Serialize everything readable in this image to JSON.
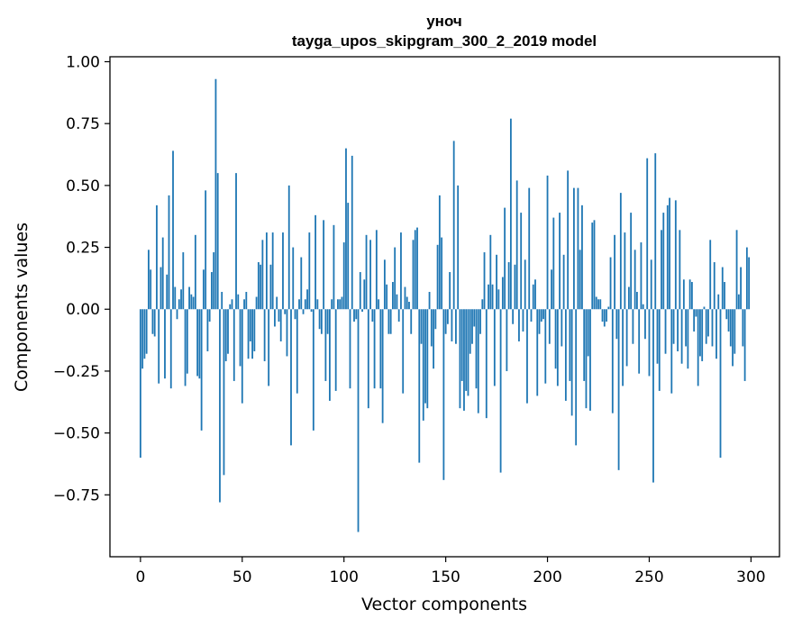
{
  "chart_data": {
    "type": "bar",
    "title_line1": "уноч",
    "title_line2": "tayga_upos_skipgram_300_2_2019 model",
    "xlabel": "Vector components",
    "ylabel": "Components values",
    "xlim": [
      -15,
      314
    ],
    "ylim": [
      -1.0,
      1.02
    ],
    "xticks": [
      0,
      50,
      100,
      150,
      200,
      250,
      300
    ],
    "xtick_labels": [
      "0",
      "50",
      "100",
      "150",
      "200",
      "250",
      "300"
    ],
    "yticks": [
      1.0,
      0.75,
      0.5,
      0.25,
      0.0,
      -0.25,
      -0.5,
      -0.75
    ],
    "ytick_labels": [
      "1.00",
      "0.75",
      "0.50",
      "0.25",
      "0.00",
      "−0.25",
      "−0.50",
      "−0.75"
    ],
    "bar_color": "#1f77b4",
    "grid": false,
    "values": [
      -0.6,
      -0.24,
      -0.2,
      -0.18,
      0.24,
      0.16,
      -0.1,
      -0.11,
      0.42,
      -0.3,
      0.17,
      0.29,
      -0.28,
      0.14,
      0.46,
      -0.32,
      0.64,
      0.09,
      -0.04,
      0.04,
      0.08,
      0.23,
      -0.31,
      -0.26,
      0.09,
      0.06,
      0.05,
      0.3,
      -0.27,
      -0.28,
      -0.49,
      0.16,
      0.48,
      -0.17,
      -0.05,
      0.15,
      0.23,
      0.93,
      0.55,
      -0.78,
      0.07,
      -0.67,
      -0.21,
      -0.18,
      0.02,
      0.04,
      -0.29,
      0.55,
      0.06,
      -0.23,
      -0.38,
      0.04,
      0.07,
      -0.2,
      -0.13,
      -0.2,
      -0.17,
      0.05,
      0.19,
      0.18,
      0.28,
      -0.21,
      0.31,
      -0.31,
      0.18,
      0.31,
      -0.07,
      0.05,
      -0.05,
      -0.13,
      0.31,
      -0.02,
      -0.19,
      0.5,
      -0.55,
      0.25,
      -0.04,
      -0.34,
      0.04,
      0.21,
      -0.02,
      0.04,
      0.08,
      0.31,
      -0.01,
      -0.49,
      0.38,
      0.04,
      -0.08,
      -0.1,
      0.36,
      -0.29,
      -0.1,
      -0.37,
      0.04,
      0.34,
      -0.33,
      0.04,
      0.04,
      0.05,
      0.27,
      0.65,
      0.43,
      -0.32,
      0.62,
      -0.05,
      -0.04,
      -0.9,
      0.15,
      -0.01,
      0.12,
      0.3,
      -0.4,
      0.28,
      -0.05,
      -0.32,
      0.32,
      0.04,
      -0.32,
      -0.46,
      0.2,
      0.1,
      -0.1,
      -0.1,
      0.11,
      0.25,
      0.06,
      -0.05,
      0.31,
      -0.34,
      0.09,
      0.05,
      0.03,
      -0.1,
      0.28,
      0.32,
      0.33,
      -0.62,
      -0.14,
      -0.45,
      -0.38,
      -0.4,
      0.07,
      -0.15,
      -0.24,
      -0.08,
      0.26,
      0.46,
      0.29,
      -0.69,
      -0.1,
      -0.06,
      0.15,
      -0.13,
      0.68,
      -0.14,
      0.5,
      -0.4,
      -0.29,
      -0.41,
      -0.33,
      -0.35,
      -0.18,
      -0.14,
      -0.07,
      -0.32,
      -0.42,
      -0.1,
      0.04,
      0.23,
      -0.44,
      0.1,
      0.3,
      0.1,
      -0.31,
      0.22,
      0.08,
      -0.66,
      0.13,
      0.41,
      -0.25,
      0.19,
      0.77,
      -0.06,
      0.18,
      0.52,
      -0.13,
      0.39,
      -0.09,
      0.2,
      -0.38,
      0.49,
      -0.05,
      0.1,
      0.12,
      -0.35,
      -0.1,
      -0.05,
      -0.04,
      -0.3,
      0.54,
      -0.14,
      0.16,
      0.37,
      -0.24,
      -0.31,
      0.39,
      -0.15,
      0.22,
      -0.37,
      0.56,
      -0.29,
      -0.43,
      0.49,
      -0.55,
      0.49,
      0.24,
      0.42,
      -0.29,
      -0.4,
      -0.19,
      -0.41,
      0.35,
      0.36,
      0.05,
      0.04,
      0.04,
      -0.05,
      -0.07,
      -0.05,
      0.01,
      0.21,
      -0.42,
      0.3,
      -0.12,
      -0.65,
      0.47,
      -0.31,
      0.31,
      -0.23,
      0.09,
      0.39,
      -0.14,
      0.24,
      0.07,
      -0.26,
      0.27,
      0.02,
      -0.12,
      0.61,
      -0.27,
      0.2,
      -0.7,
      0.63,
      -0.22,
      -0.33,
      0.32,
      0.39,
      -0.18,
      0.42,
      0.45,
      -0.34,
      -0.14,
      0.44,
      -0.17,
      0.32,
      -0.22,
      0.12,
      -0.15,
      -0.24,
      0.12,
      0.11,
      -0.09,
      -0.03,
      -0.31,
      -0.19,
      -0.21,
      0.01,
      -0.14,
      -0.11,
      0.28,
      -0.15,
      0.19,
      -0.2,
      0.06,
      -0.6,
      0.17,
      0.11,
      -0.04,
      -0.09,
      -0.15,
      -0.23,
      -0.18,
      0.32,
      0.06,
      0.17,
      -0.15,
      -0.29,
      0.25,
      0.21
    ]
  }
}
